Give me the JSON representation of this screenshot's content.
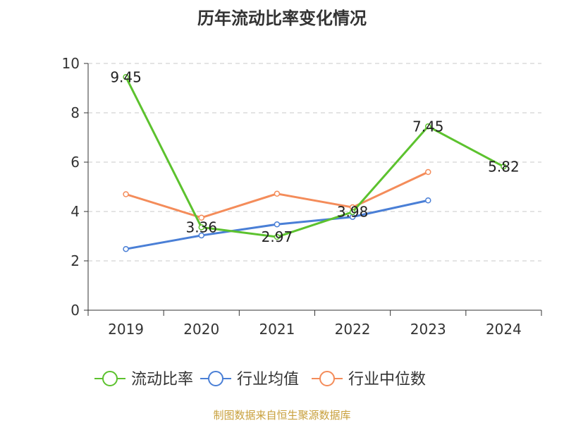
{
  "chart_data": {
    "type": "line",
    "title": "历年流动比率变化情况",
    "categories": [
      "2019",
      "2020",
      "2021",
      "2022",
      "2023",
      "2024"
    ],
    "ylim": [
      0,
      10
    ],
    "yticks": [
      "0",
      "2",
      "4",
      "6",
      "8",
      "10"
    ],
    "grid": true,
    "legend_position": "bottom",
    "series": [
      {
        "name": "流动比率",
        "color": "#5cc22e",
        "values": [
          9.45,
          3.36,
          2.97,
          3.98,
          7.45,
          5.82
        ],
        "labels": [
          "9.45",
          "3.36",
          "2.97",
          "3.98",
          "7.45",
          "5.82"
        ]
      },
      {
        "name": "行业均值",
        "color": "#4a7fd6",
        "values": [
          2.48,
          3.03,
          3.48,
          3.78,
          4.45,
          null
        ]
      },
      {
        "name": "行业中位数",
        "color": "#f48c5a",
        "values": [
          4.7,
          3.75,
          4.72,
          4.17,
          5.6,
          null
        ]
      }
    ]
  },
  "footer": {
    "source": "制图数据来自恒生聚源数据库"
  }
}
